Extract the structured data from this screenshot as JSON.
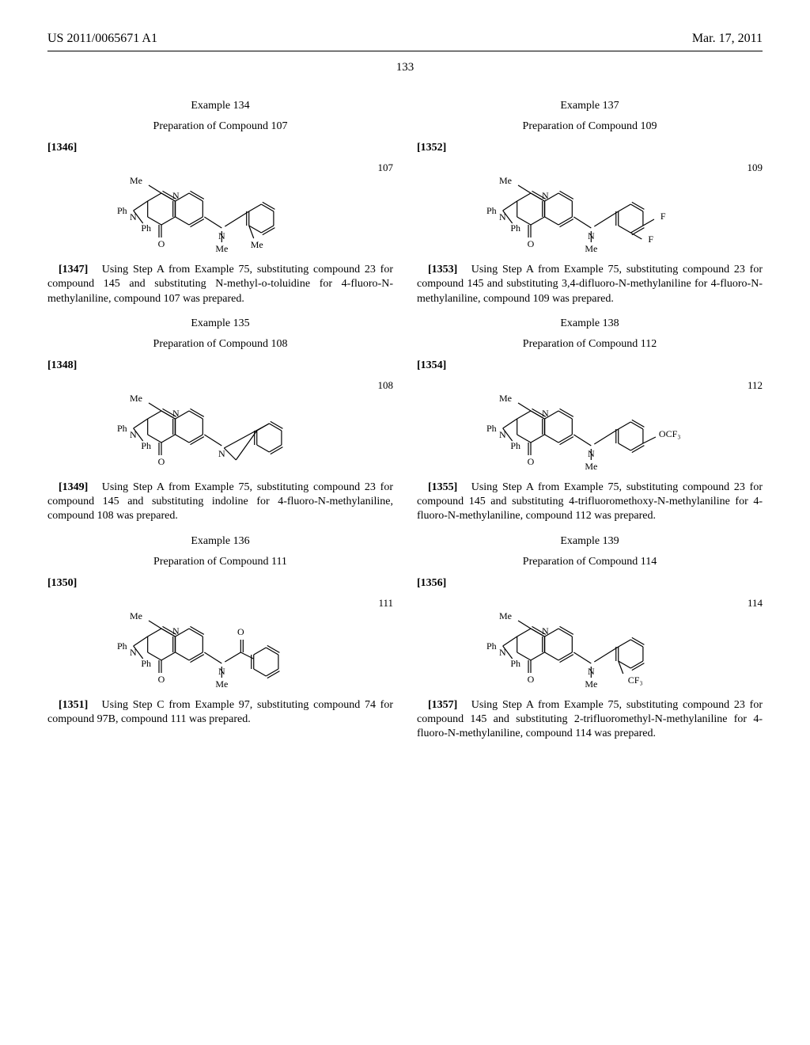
{
  "header": {
    "pubnum": "US 2011/0065671 A1",
    "date": "Mar. 17, 2011"
  },
  "page_number": "133",
  "columns": {
    "left": [
      {
        "example_label": "Example 134",
        "prep_label": "Preparation of Compound 107",
        "para_num": "[1346]",
        "struct_label": "107",
        "compound_id": "107",
        "body_num": "[1347]",
        "body": "Using Step A from Example 75, substituting compound 23 for compound 145 and substituting N-methyl-o-toluidine for 4-fluoro-N-methylaniline, compound 107 was prepared."
      },
      {
        "example_label": "Example 135",
        "prep_label": "Preparation of Compound 108",
        "para_num": "[1348]",
        "struct_label": "108",
        "compound_id": "108",
        "body_num": "[1349]",
        "body": "Using Step A from Example 75, substituting compound 23 for compound 145 and substituting indoline for 4-fluoro-N-methylaniline, compound 108 was prepared."
      },
      {
        "example_label": "Example 136",
        "prep_label": "Preparation of Compound 111",
        "para_num": "[1350]",
        "struct_label": "111",
        "compound_id": "111",
        "body_num": "[1351]",
        "body": "Using Step C from Example 97, substituting compound 74 for compound 97B, compound 111 was prepared."
      }
    ],
    "right": [
      {
        "example_label": "Example 137",
        "prep_label": "Preparation of Compound 109",
        "para_num": "[1352]",
        "struct_label": "109",
        "compound_id": "109",
        "body_num": "[1353]",
        "body": "Using Step A from Example 75, substituting compound 23 for compound 145 and substituting 3,4-difluoro-N-methylaniline for 4-fluoro-N-methylaniline, compound 109 was prepared."
      },
      {
        "example_label": "Example 138",
        "prep_label": "Preparation of Compound 112",
        "para_num": "[1354]",
        "struct_label": "112",
        "compound_id": "112",
        "body_num": "[1355]",
        "body": "Using Step A from Example 75, substituting compound 23 for compound 145 and substituting 4-trifluoromethoxy-N-methylaniline for 4-fluoro-N-methylaniline, compound 112 was prepared."
      },
      {
        "example_label": "Example 139",
        "prep_label": "Preparation of Compound 114",
        "para_num": "[1356]",
        "struct_label": "114",
        "compound_id": "114",
        "body_num": "[1357]",
        "body": "Using Step A from Example 75, substituting compound 23 for compound 145 and substituting 2-trifluoromethyl-N-methylaniline for 4-fluoro-N-methylaniline, compound 114 was prepared."
      }
    ]
  },
  "structures": {
    "core_labels": {
      "me": "Me",
      "ph": "Ph",
      "o": "O",
      "n": "N"
    },
    "107": {
      "substituents": {
        "nme": "Me",
        "ortho": "Me"
      }
    },
    "108": {
      "substituents": {}
    },
    "111": {
      "substituents": {
        "nme": "Me",
        "carbonyl_o": "O"
      }
    },
    "109": {
      "substituents": {
        "nme": "Me",
        "f1": "F",
        "f2": "F"
      }
    },
    "112": {
      "substituents": {
        "nme": "Me",
        "ocf3": "OCF₃"
      }
    },
    "114": {
      "substituents": {
        "nme": "Me",
        "cf3": "CF₃"
      }
    }
  },
  "svg_style": {
    "stroke": "#000000",
    "stroke_width": 1.2,
    "font_family": "Times New Roman, Times, serif",
    "font_size": 12
  }
}
